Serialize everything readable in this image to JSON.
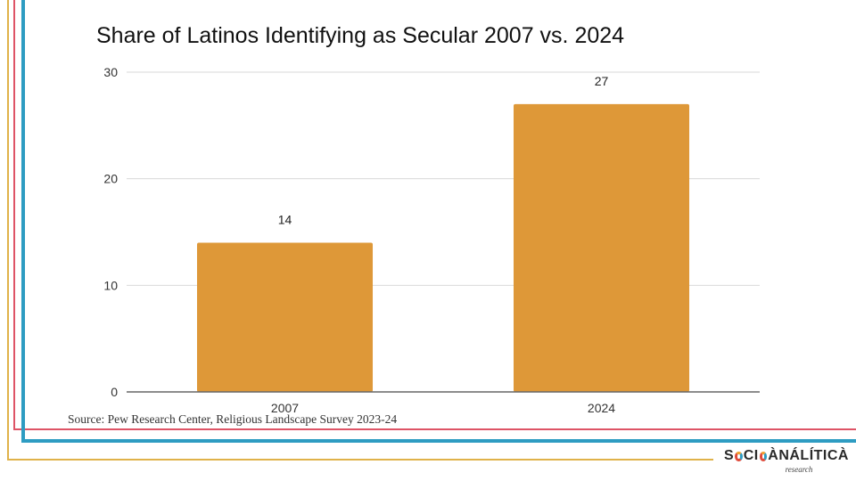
{
  "slide": {
    "source_text": "Source: Pew Research Center, Religious Landscape Survey 2023-24",
    "logo": {
      "name_parts": [
        "S",
        "CI",
        "ÀNÁLÍTICÀ"
      ],
      "name": "SOCIOANALÍTICA",
      "sub": "research"
    },
    "colors": {
      "accent_orange": "#e0b24a",
      "accent_red": "#de5466",
      "accent_blue": "#2e9cc2"
    }
  },
  "chart_data": {
    "type": "bar",
    "title": "Share of Latinos Identifying as Secular 2007 vs. 2024",
    "categories": [
      "2007",
      "2024"
    ],
    "values": [
      14,
      27
    ],
    "data_labels": [
      "14",
      "27"
    ],
    "xlabel": "",
    "ylabel": "",
    "ylim": [
      0,
      30
    ],
    "yticks": [
      0,
      10,
      20,
      30
    ],
    "ytick_labels": [
      "0",
      "10",
      "20",
      "30"
    ],
    "grid": true,
    "legend": "none",
    "bar_color": "#de9838"
  }
}
